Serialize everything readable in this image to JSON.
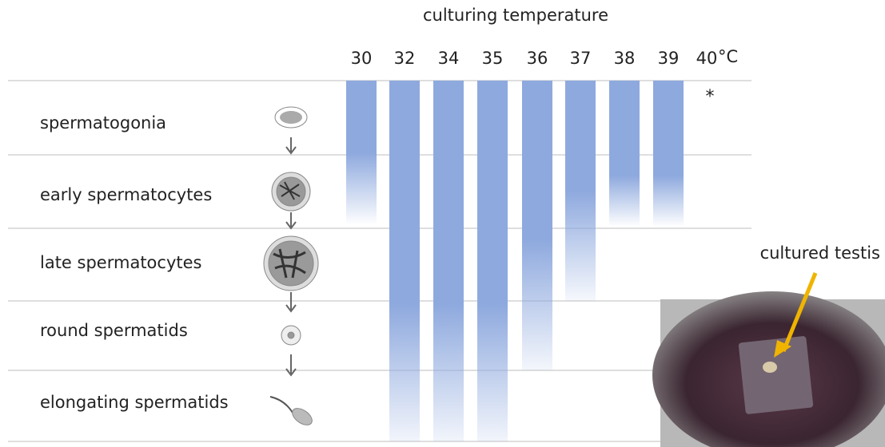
{
  "header": {
    "title": "culturing temperature"
  },
  "temperatures": [
    "30",
    "32",
    "34",
    "35",
    "36",
    "37",
    "38",
    "39",
    "40"
  ],
  "unit": "°C",
  "note": "*",
  "stages": [
    "spermatogonia",
    "early spermatocytes",
    "late spermatocytes",
    "round spermatids",
    "elongating spermatids"
  ],
  "photo": {
    "label": "cultured testis"
  }
}
